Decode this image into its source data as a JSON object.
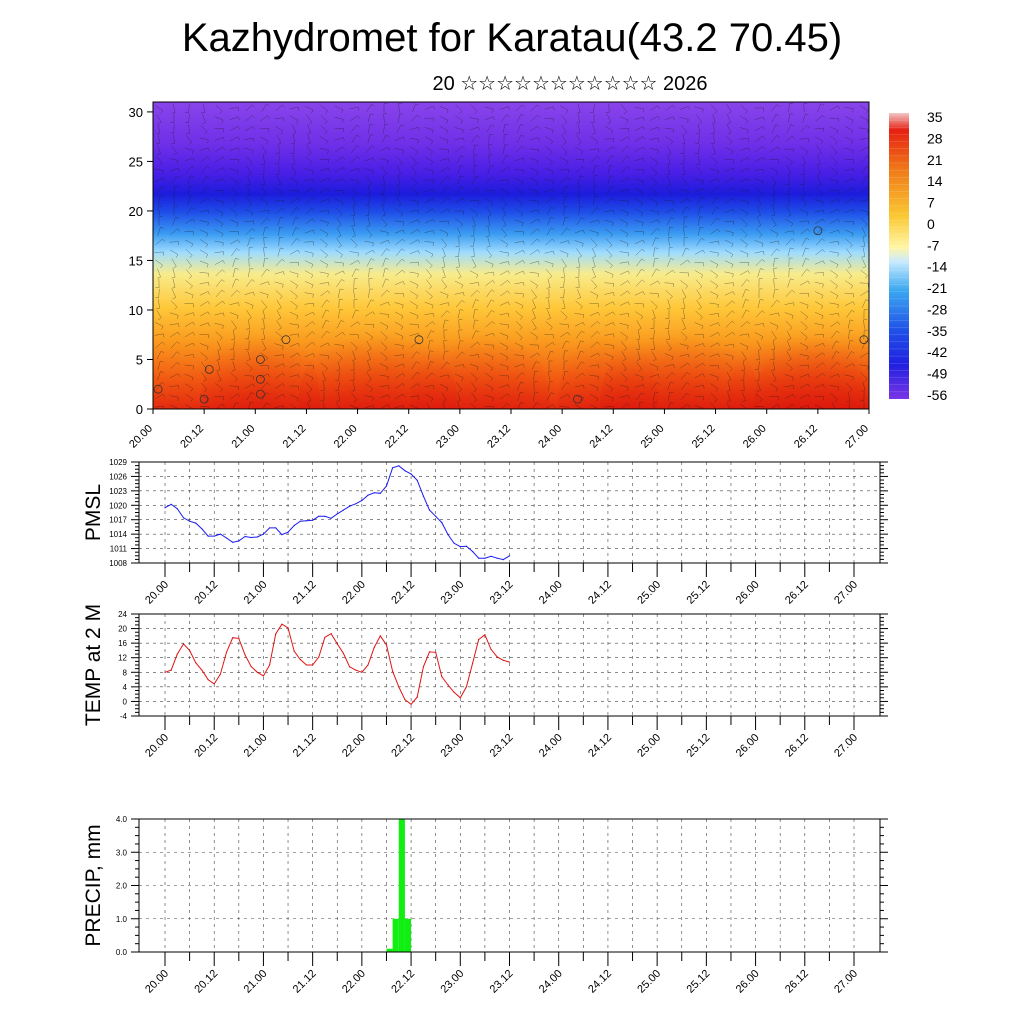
{
  "title": "Kazhydromet for Karatau(43.2 70.45)",
  "subtitle": "20 ☆☆☆☆☆☆☆☆☆☆☆ 2026",
  "chart_data": [
    {
      "type": "heatmap",
      "name": "cross-section",
      "ylim": [
        0,
        31
      ],
      "yticks": [
        0,
        5,
        10,
        15,
        20,
        25,
        30
      ],
      "xticks": [
        "20.00",
        "20.12",
        "21.00",
        "21.12",
        "22.00",
        "22.12",
        "23.00",
        "23.12",
        "24.00",
        "24.12",
        "25.00",
        "25.12",
        "26.00",
        "26.12",
        "27.00"
      ],
      "colorbar": [
        "35",
        "28",
        "21",
        "14",
        "7",
        "0",
        "-7",
        "-14",
        "-21",
        "-28",
        "-35",
        "-42",
        "-49",
        "-56"
      ],
      "colors": {
        "cold": "#7a2ee6",
        "mid": "#ffee66",
        "warm": "#e62012"
      }
    },
    {
      "type": "line",
      "name": "pmsl",
      "ylabel": "PMSL",
      "ylim": [
        1008,
        1029
      ],
      "yticks": [
        "1008",
        "1011",
        "1014",
        "1017",
        "1020",
        "1023",
        "1026",
        "1029"
      ],
      "xticks": [
        "20.00",
        "20.12",
        "21.00",
        "21.12",
        "22.00",
        "22.12",
        "23.00",
        "23.12",
        "24.00",
        "24.12",
        "25.00",
        "25.12",
        "26.00",
        "26.12",
        "27.00"
      ],
      "color": "#1c1cf0",
      "values": [
        1019.5,
        1020.2,
        1019.3,
        1017.4,
        1016.7,
        1016.3,
        1015.1,
        1013.6,
        1013.6,
        1014.0,
        1013.2,
        1012.3,
        1012.6,
        1013.5,
        1013.3,
        1013.4,
        1014.0,
        1015.3,
        1015.3,
        1013.9,
        1014.4,
        1015.8,
        1016.7,
        1016.8,
        1016.9,
        1017.7,
        1017.7,
        1017.3,
        1018.2,
        1019.0,
        1019.8,
        1020.3,
        1021.0,
        1022.1,
        1022.6,
        1022.5,
        1024.0,
        1027.8,
        1028.2,
        1027.2,
        1026.5,
        1025.2,
        1021.9,
        1019.0,
        1017.7,
        1016.4,
        1013.9,
        1012.1,
        1011.4,
        1011.5,
        1010.4,
        1009.0,
        1009.0,
        1009.4,
        1009.0,
        1008.7,
        1009.5
      ]
    },
    {
      "type": "line",
      "name": "temp",
      "ylabel": "TEMP at 2 M",
      "ylim": [
        -4,
        24
      ],
      "yticks": [
        "-4",
        "0",
        "4",
        "8",
        "12",
        "16",
        "20",
        "24"
      ],
      "xticks": [
        "20.00",
        "20.12",
        "21.00",
        "21.12",
        "22.00",
        "22.12",
        "23.00",
        "23.12",
        "24.00",
        "24.12",
        "25.00",
        "25.12",
        "26.00",
        "26.12",
        "27.00"
      ],
      "color": "#e01414",
      "values": [
        8.0,
        8.6,
        13.0,
        15.8,
        14.0,
        10.6,
        8.6,
        6.0,
        4.8,
        7.5,
        13.5,
        17.5,
        17.3,
        12.8,
        9.6,
        8.0,
        7.0,
        10.0,
        18.5,
        21.2,
        20.2,
        13.8,
        11.5,
        10.0,
        10.0,
        12.2,
        17.6,
        18.6,
        15.8,
        13.2,
        9.5,
        8.6,
        8.0,
        10.0,
        14.8,
        18.0,
        15.5,
        8.3,
        4.0,
        0.5,
        -0.8,
        1.2,
        9.5,
        13.6,
        13.5,
        6.8,
        4.5,
        2.5,
        1.0,
        4.0,
        10.5,
        17.0,
        18.3,
        14.3,
        12.2,
        11.3,
        10.8
      ]
    },
    {
      "type": "bar",
      "name": "precip",
      "ylabel": "PRECIP, mm",
      "ylim": [
        0,
        4
      ],
      "yticks": [
        "0.0",
        "1.0",
        "2.0",
        "3.0",
        "4.0"
      ],
      "xticks": [
        "20.00",
        "20.12",
        "21.00",
        "21.12",
        "22.00",
        "22.12",
        "23.00",
        "23.12",
        "24.00",
        "24.12",
        "25.00",
        "25.12",
        "26.00",
        "26.12",
        "27.00"
      ],
      "color": "#11ee11",
      "bins": [
        {
          "start": 36,
          "end": 37,
          "value": 0.1
        },
        {
          "start": 37,
          "end": 38,
          "value": 1.0
        },
        {
          "start": 38,
          "end": 39,
          "value": 4.0
        },
        {
          "start": 39,
          "end": 40,
          "value": 1.0
        }
      ]
    }
  ]
}
